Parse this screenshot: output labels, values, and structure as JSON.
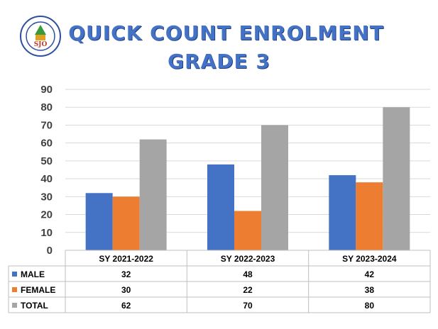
{
  "title_line1": "QUICK COUNT ENROLMENT",
  "title_line2": "GRADE 3",
  "colors": {
    "male": "#4472c4",
    "female": "#ed7d31",
    "total": "#a5a5a5",
    "grid": "#d9d9d9"
  },
  "chart_data": {
    "type": "bar",
    "categories": [
      "SY 2021-2022",
      "SY 2022-2023",
      "SY 2023-2024"
    ],
    "series": [
      {
        "name": "MALE",
        "values": [
          32,
          48,
          42
        ]
      },
      {
        "name": "FEMALE",
        "values": [
          30,
          22,
          38
        ]
      },
      {
        "name": "TOTAL",
        "values": [
          62,
          70,
          80
        ]
      }
    ],
    "ylim": [
      0,
      90
    ],
    "yticks": [
      0,
      10,
      20,
      30,
      40,
      50,
      60,
      70,
      80,
      90
    ],
    "grid": true,
    "data_table": true
  }
}
